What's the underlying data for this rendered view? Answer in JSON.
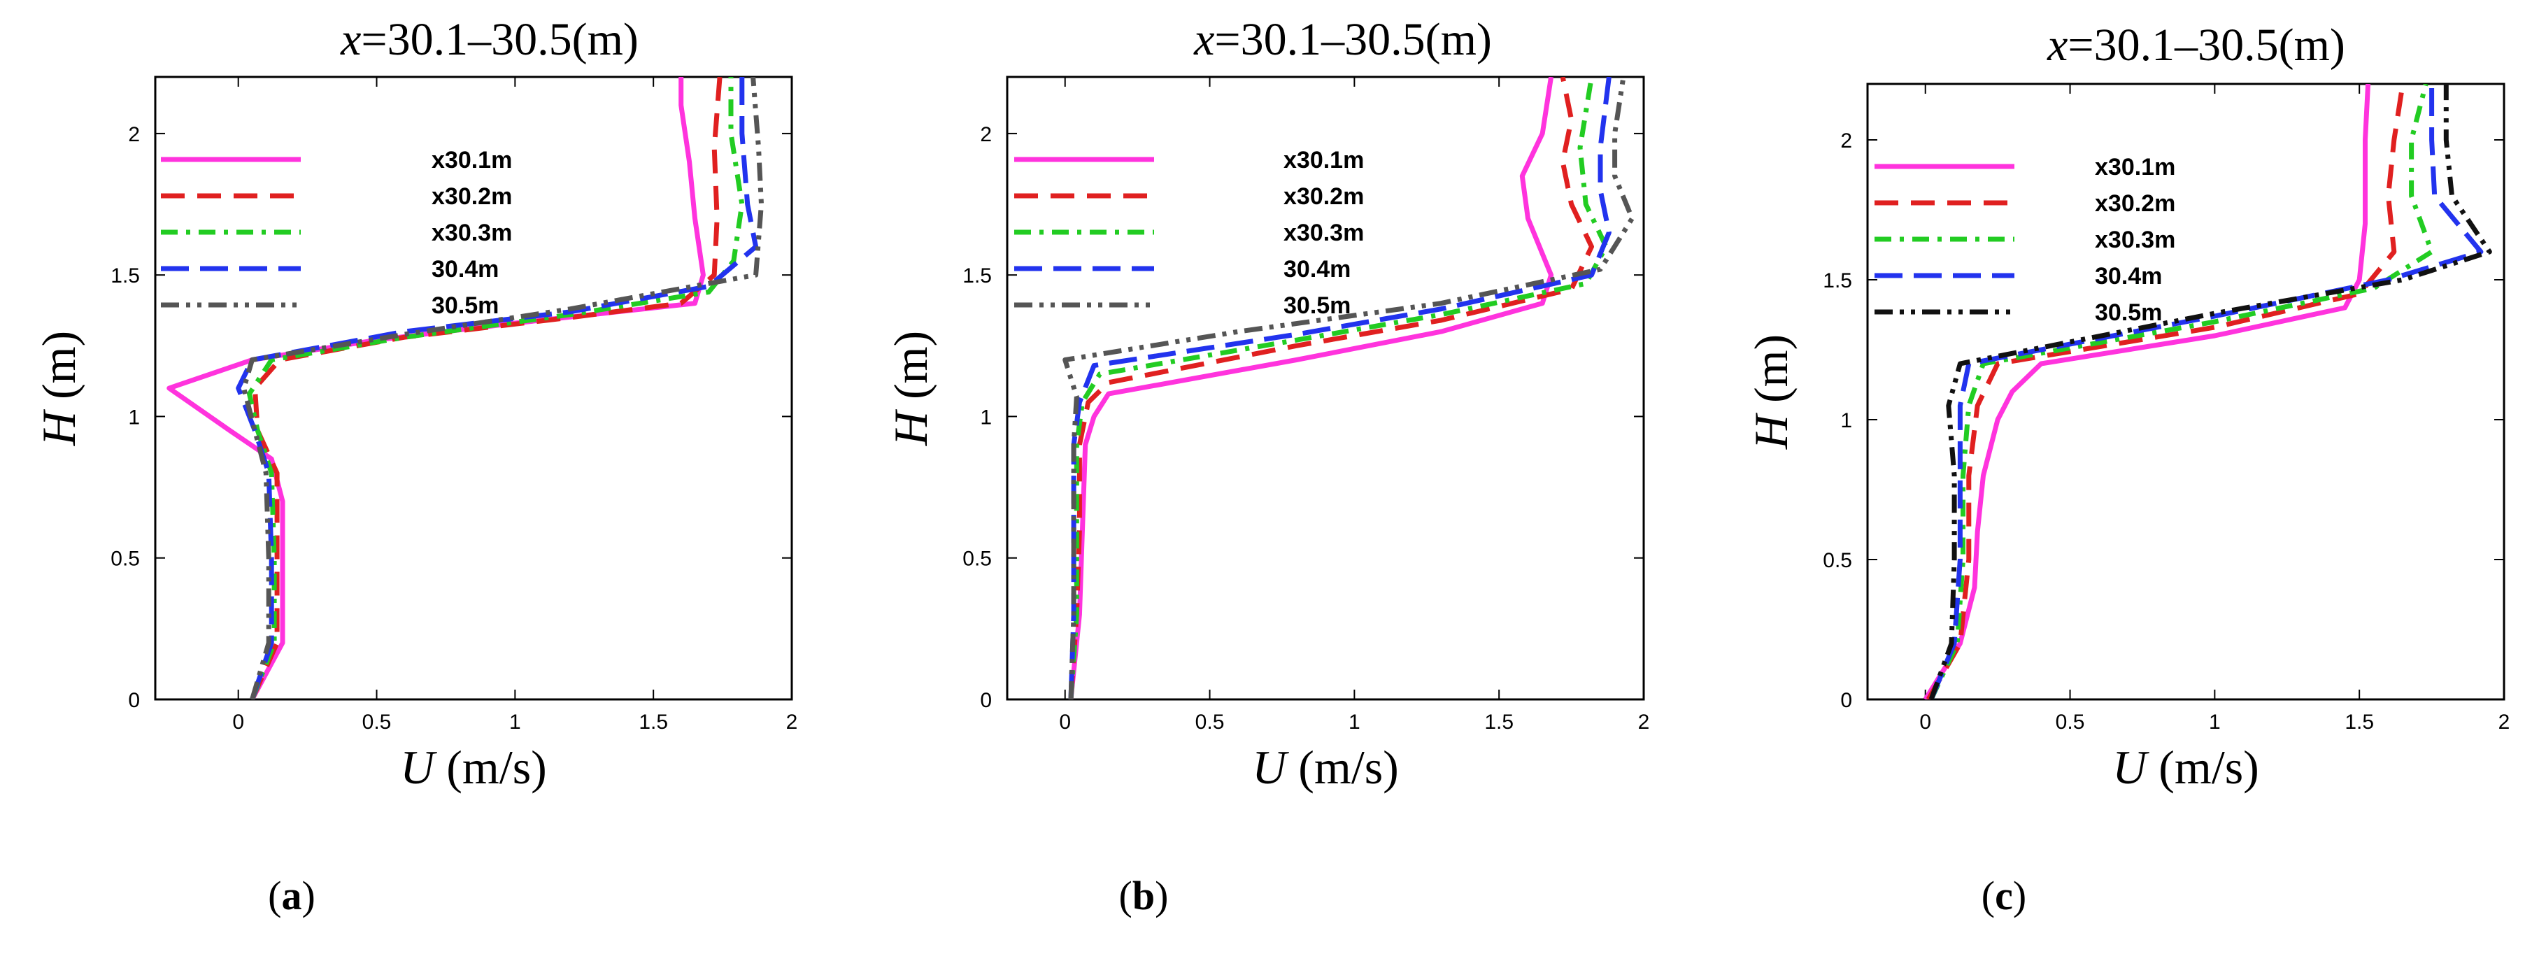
{
  "chart_data": [
    {
      "type": "line",
      "panel_label": "(a)",
      "title": "x=30.1–30.5(m)",
      "xlabel": "U (m/s)",
      "ylabel": "H (m)",
      "xlim": [
        -0.3,
        2.0
      ],
      "ylim": [
        0,
        2.2
      ],
      "xticks": [
        "0",
        "0.5",
        "1",
        "1.5",
        "2"
      ],
      "yticks": [
        "0",
        "0.5",
        "1",
        "1.5",
        "2"
      ],
      "legend_location": "upper-left",
      "series": [
        {
          "name": "x30.1m",
          "color": "#ff33dd",
          "style": "solid",
          "points": [
            [
              0.05,
              0
            ],
            [
              0.16,
              0.2
            ],
            [
              0.16,
              0.5
            ],
            [
              0.16,
              0.7
            ],
            [
              0.12,
              0.85
            ],
            [
              -0.03,
              0.95
            ],
            [
              -0.25,
              1.1
            ],
            [
              0.05,
              1.2
            ],
            [
              0.5,
              1.27
            ],
            [
              1.0,
              1.33
            ],
            [
              1.65,
              1.4
            ],
            [
              1.68,
              1.5
            ],
            [
              1.65,
              1.7
            ],
            [
              1.63,
              1.9
            ],
            [
              1.6,
              2.1
            ],
            [
              1.6,
              2.2
            ]
          ]
        },
        {
          "name": "x30.2m",
          "color": "#e02020",
          "style": "dash",
          "points": [
            [
              0.05,
              0
            ],
            [
              0.14,
              0.2
            ],
            [
              0.14,
              0.5
            ],
            [
              0.14,
              0.8
            ],
            [
              0.07,
              0.95
            ],
            [
              0.06,
              1.1
            ],
            [
              0.15,
              1.2
            ],
            [
              0.6,
              1.28
            ],
            [
              1.2,
              1.35
            ],
            [
              1.6,
              1.4
            ],
            [
              1.72,
              1.5
            ],
            [
              1.73,
              1.7
            ],
            [
              1.72,
              1.95
            ],
            [
              1.74,
              2.2
            ]
          ]
        },
        {
          "name": "x30.3m",
          "color": "#22cc22",
          "style": "dashdot",
          "points": [
            [
              0.05,
              0
            ],
            [
              0.13,
              0.2
            ],
            [
              0.13,
              0.5
            ],
            [
              0.12,
              0.8
            ],
            [
              0.07,
              0.95
            ],
            [
              0.04,
              1.08
            ],
            [
              0.12,
              1.2
            ],
            [
              0.6,
              1.28
            ],
            [
              1.2,
              1.36
            ],
            [
              1.7,
              1.44
            ],
            [
              1.79,
              1.55
            ],
            [
              1.82,
              1.75
            ],
            [
              1.78,
              2.0
            ],
            [
              1.78,
              2.2
            ]
          ]
        },
        {
          "name": "30.4m",
          "color": "#2233ee",
          "style": "longdash",
          "points": [
            [
              0.05,
              0
            ],
            [
              0.12,
              0.2
            ],
            [
              0.12,
              0.5
            ],
            [
              0.11,
              0.8
            ],
            [
              0.06,
              0.95
            ],
            [
              0.0,
              1.1
            ],
            [
              0.05,
              1.2
            ],
            [
              0.6,
              1.3
            ],
            [
              1.2,
              1.37
            ],
            [
              1.7,
              1.46
            ],
            [
              1.87,
              1.6
            ],
            [
              1.84,
              1.75
            ],
            [
              1.82,
              2.0
            ],
            [
              1.82,
              2.2
            ]
          ]
        },
        {
          "name": "30.5m",
          "color": "#555555",
          "style": "dashdotdot",
          "points": [
            [
              0.05,
              0
            ],
            [
              0.11,
              0.2
            ],
            [
              0.11,
              0.5
            ],
            [
              0.1,
              0.8
            ],
            [
              0.06,
              0.95
            ],
            [
              0.02,
              1.1
            ],
            [
              0.05,
              1.2
            ],
            [
              0.6,
              1.29
            ],
            [
              1.2,
              1.38
            ],
            [
              1.7,
              1.47
            ],
            [
              1.87,
              1.5
            ],
            [
              1.89,
              1.75
            ],
            [
              1.88,
              1.95
            ],
            [
              1.86,
              2.2
            ]
          ]
        }
      ]
    },
    {
      "type": "line",
      "panel_label": "(b)",
      "title": "x=30.1–30.5(m)",
      "xlabel": "U (m/s)",
      "ylabel": "H (m)",
      "xlim": [
        -0.2,
        2.0
      ],
      "ylim": [
        0,
        2.2
      ],
      "xticks": [
        "0",
        "0.5",
        "1",
        "1.5",
        "2"
      ],
      "yticks": [
        "0",
        "0.5",
        "1",
        "1.5",
        "2"
      ],
      "legend_location": "upper-left",
      "series": [
        {
          "name": "x30.1m",
          "color": "#ff33dd",
          "style": "solid",
          "points": [
            [
              0.02,
              0
            ],
            [
              0.05,
              0.3
            ],
            [
              0.06,
              0.6
            ],
            [
              0.07,
              0.9
            ],
            [
              0.1,
              1.0
            ],
            [
              0.15,
              1.08
            ],
            [
              0.8,
              1.2
            ],
            [
              1.3,
              1.3
            ],
            [
              1.65,
              1.4
            ],
            [
              1.68,
              1.5
            ],
            [
              1.6,
              1.7
            ],
            [
              1.58,
              1.85
            ],
            [
              1.65,
              2.0
            ],
            [
              1.68,
              2.2
            ]
          ]
        },
        {
          "name": "x30.2m",
          "color": "#e02020",
          "style": "dash",
          "points": [
            [
              0.02,
              0
            ],
            [
              0.04,
              0.3
            ],
            [
              0.05,
              0.6
            ],
            [
              0.05,
              0.9
            ],
            [
              0.08,
              1.05
            ],
            [
              0.15,
              1.12
            ],
            [
              0.8,
              1.25
            ],
            [
              1.3,
              1.34
            ],
            [
              1.75,
              1.45
            ],
            [
              1.82,
              1.6
            ],
            [
              1.75,
              1.75
            ],
            [
              1.72,
              1.9
            ],
            [
              1.75,
              2.05
            ],
            [
              1.72,
              2.2
            ]
          ]
        },
        {
          "name": "x30.3m",
          "color": "#22cc22",
          "style": "dashdot",
          "points": [
            [
              0.02,
              0
            ],
            [
              0.04,
              0.3
            ],
            [
              0.04,
              0.6
            ],
            [
              0.04,
              0.9
            ],
            [
              0.06,
              1.05
            ],
            [
              0.12,
              1.15
            ],
            [
              0.8,
              1.27
            ],
            [
              1.3,
              1.36
            ],
            [
              1.8,
              1.47
            ],
            [
              1.87,
              1.6
            ],
            [
              1.8,
              1.75
            ],
            [
              1.78,
              1.95
            ],
            [
              1.82,
              2.2
            ]
          ]
        },
        {
          "name": "30.4m",
          "color": "#2233ee",
          "style": "longdash",
          "points": [
            [
              0.02,
              0
            ],
            [
              0.03,
              0.3
            ],
            [
              0.03,
              0.6
            ],
            [
              0.03,
              0.9
            ],
            [
              0.05,
              1.05
            ],
            [
              0.1,
              1.18
            ],
            [
              0.8,
              1.29
            ],
            [
              1.3,
              1.38
            ],
            [
              1.82,
              1.5
            ],
            [
              1.88,
              1.65
            ],
            [
              1.85,
              1.8
            ],
            [
              1.85,
              1.95
            ],
            [
              1.88,
              2.2
            ]
          ]
        },
        {
          "name": "30.5m",
          "color": "#555555",
          "style": "dashdotdot",
          "points": [
            [
              0.02,
              0
            ],
            [
              0.03,
              0.3
            ],
            [
              0.03,
              0.6
            ],
            [
              0.03,
              0.9
            ],
            [
              0.04,
              1.07
            ],
            [
              0.0,
              1.2
            ],
            [
              0.6,
              1.3
            ],
            [
              1.3,
              1.4
            ],
            [
              1.85,
              1.52
            ],
            [
              1.96,
              1.7
            ],
            [
              1.9,
              1.85
            ],
            [
              1.9,
              2.0
            ],
            [
              1.93,
              2.2
            ]
          ]
        }
      ]
    },
    {
      "type": "line",
      "panel_label": "(c)",
      "title": "x=30.1–30.5(m)",
      "xlabel": "U (m/s)",
      "ylabel": "H (m)",
      "xlim": [
        -0.2,
        2.0
      ],
      "ylim": [
        0,
        2.2
      ],
      "xticks": [
        "0",
        "0.5",
        "1",
        "1.5",
        "2"
      ],
      "yticks": [
        "0",
        "0.5",
        "1",
        "1.5",
        "2"
      ],
      "legend_location": "upper-left",
      "series": [
        {
          "name": "x30.1m",
          "color": "#ff33dd",
          "style": "solid",
          "points": [
            [
              0.0,
              0
            ],
            [
              0.12,
              0.2
            ],
            [
              0.17,
              0.4
            ],
            [
              0.18,
              0.6
            ],
            [
              0.2,
              0.8
            ],
            [
              0.25,
              1.0
            ],
            [
              0.3,
              1.1
            ],
            [
              0.4,
              1.2
            ],
            [
              1.0,
              1.3
            ],
            [
              1.45,
              1.4
            ],
            [
              1.5,
              1.5
            ],
            [
              1.52,
              1.7
            ],
            [
              1.52,
              2.0
            ],
            [
              1.53,
              2.2
            ]
          ]
        },
        {
          "name": "x30.2m",
          "color": "#e02020",
          "style": "dash",
          "points": [
            [
              0.01,
              0
            ],
            [
              0.12,
              0.2
            ],
            [
              0.15,
              0.5
            ],
            [
              0.15,
              0.8
            ],
            [
              0.18,
              1.05
            ],
            [
              0.25,
              1.2
            ],
            [
              1.0,
              1.33
            ],
            [
              1.5,
              1.45
            ],
            [
              1.62,
              1.6
            ],
            [
              1.6,
              1.8
            ],
            [
              1.62,
              2.0
            ],
            [
              1.65,
              2.2
            ]
          ]
        },
        {
          "name": "x30.3m",
          "color": "#22cc22",
          "style": "dashdot",
          "points": [
            [
              0.02,
              0
            ],
            [
              0.11,
              0.2
            ],
            [
              0.13,
              0.5
            ],
            [
              0.13,
              0.8
            ],
            [
              0.15,
              1.05
            ],
            [
              0.2,
              1.2
            ],
            [
              1.0,
              1.35
            ],
            [
              1.55,
              1.47
            ],
            [
              1.75,
              1.6
            ],
            [
              1.68,
              1.8
            ],
            [
              1.68,
              2.0
            ],
            [
              1.73,
              2.2
            ]
          ]
        },
        {
          "name": "30.4m",
          "color": "#2233ee",
          "style": "longdash",
          "points": [
            [
              0.02,
              0
            ],
            [
              0.1,
              0.2
            ],
            [
              0.12,
              0.5
            ],
            [
              0.12,
              0.8
            ],
            [
              0.12,
              1.05
            ],
            [
              0.15,
              1.2
            ],
            [
              1.0,
              1.37
            ],
            [
              1.6,
              1.5
            ],
            [
              1.92,
              1.6
            ],
            [
              1.76,
              1.8
            ],
            [
              1.75,
              2.0
            ],
            [
              1.75,
              2.2
            ]
          ]
        },
        {
          "name": "30.5m",
          "color": "#111111",
          "style": "dashdotdot",
          "points": [
            [
              0.02,
              0
            ],
            [
              0.09,
              0.2
            ],
            [
              0.1,
              0.5
            ],
            [
              0.1,
              0.8
            ],
            [
              0.08,
              1.05
            ],
            [
              0.12,
              1.2
            ],
            [
              1.0,
              1.38
            ],
            [
              1.65,
              1.5
            ],
            [
              1.95,
              1.6
            ],
            [
              1.82,
              1.8
            ],
            [
              1.8,
              2.0
            ],
            [
              1.8,
              2.2
            ]
          ]
        }
      ]
    }
  ]
}
